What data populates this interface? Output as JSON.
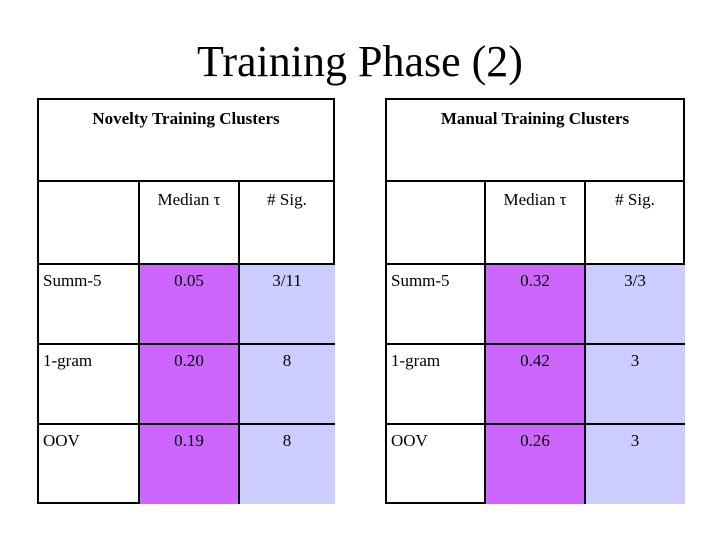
{
  "slide": {
    "title": "Training Phase (2)"
  },
  "tables": [
    {
      "caption": "Novelty Training Clusters",
      "headers": [
        "",
        "Median τ",
        "# Sig."
      ],
      "rows": [
        [
          "Summ-5",
          "0.05",
          "3/11"
        ],
        [
          "1-gram",
          "0.20",
          "8"
        ],
        [
          "OOV",
          "0.19",
          "8"
        ]
      ]
    },
    {
      "caption": "Manual Training Clusters",
      "headers": [
        "",
        "Median τ",
        "# Sig."
      ],
      "rows": [
        [
          "Summ-5",
          "0.32",
          "3/3"
        ],
        [
          "1-gram",
          "0.42",
          "3"
        ],
        [
          "OOV",
          "0.26",
          "3"
        ]
      ]
    }
  ],
  "colors": {
    "median_column": "#cc66ff",
    "sig_column": "#ccccff",
    "border": "#000000"
  }
}
